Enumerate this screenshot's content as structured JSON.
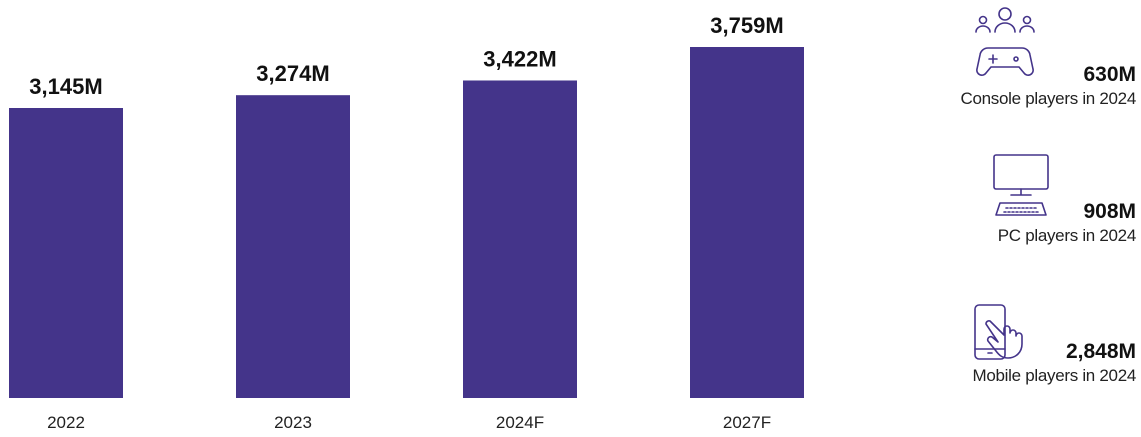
{
  "chart_data": {
    "type": "bar",
    "categories": [
      "2022",
      "2023",
      "2024F",
      "2027F"
    ],
    "values": [
      3145,
      3274,
      3422,
      3759
    ],
    "data_labels": [
      "3,145M",
      "3,274M",
      "3,422M",
      "3,759M"
    ],
    "title": "",
    "xlabel": "",
    "ylabel": "",
    "ylim": [
      0,
      3800
    ],
    "grid": false,
    "bar_color": "#44348a"
  },
  "side_stats": {
    "console": {
      "value": "630M",
      "label": "Console players in 2024",
      "icon": "gamepad-players-icon"
    },
    "pc": {
      "value": "908M",
      "label": "PC players in 2024",
      "icon": "desktop-computer-icon"
    },
    "mobile": {
      "value": "2,848M",
      "label": "Mobile players in 2024",
      "icon": "phone-touch-icon"
    }
  },
  "colors": {
    "icon_stroke": "#44348a",
    "bar": "#44348a"
  }
}
